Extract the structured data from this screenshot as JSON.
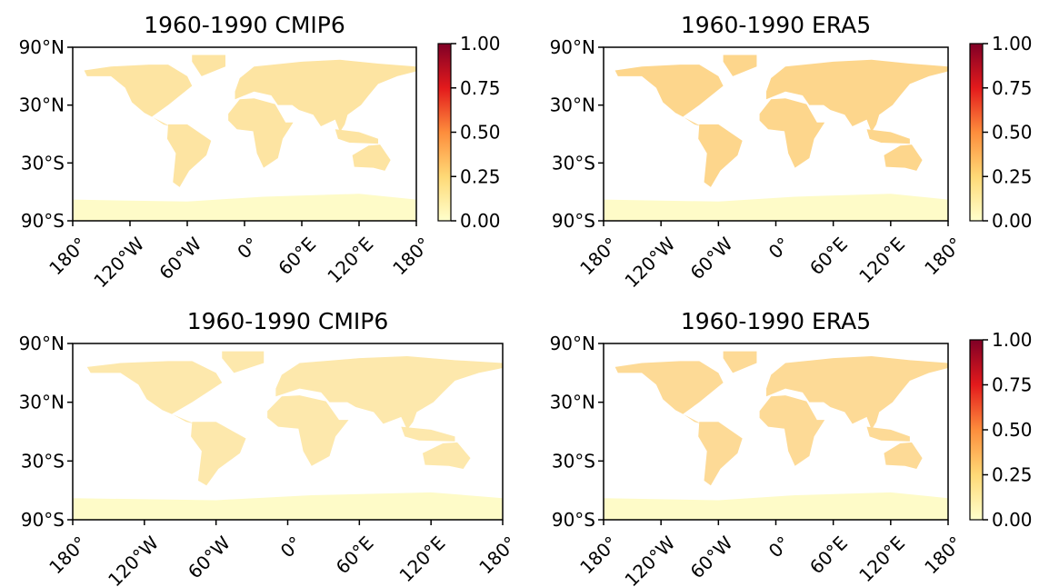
{
  "chart_data": [
    {
      "type": "map",
      "title": "1960-1990 CMIP6",
      "land_color": "#fde4a2",
      "xlim": [
        -180,
        180
      ],
      "xticks": [
        {
          "value": -180,
          "label": "180°"
        },
        {
          "value": -120,
          "label": "120°W"
        },
        {
          "value": -60,
          "label": "60°W"
        },
        {
          "value": 0,
          "label": "0°"
        },
        {
          "value": 60,
          "label": "60°E"
        },
        {
          "value": 120,
          "label": "120°E"
        },
        {
          "value": 180,
          "label": "180°"
        }
      ],
      "ylim": [
        -90,
        90
      ],
      "yticks": [
        {
          "value": 90,
          "label": "90°N"
        },
        {
          "value": 30,
          "label": "30°N"
        },
        {
          "value": -30,
          "label": "30°S"
        },
        {
          "value": -90,
          "label": "90°S"
        }
      ],
      "colorbar": {
        "lim": [
          0,
          1
        ],
        "ticks": [
          {
            "value": 0,
            "label": "0.00"
          },
          {
            "value": 0.25,
            "label": "0.25"
          },
          {
            "value": 0.5,
            "label": "0.50"
          },
          {
            "value": 0.75,
            "label": "0.75"
          },
          {
            "value": 1,
            "label": "1.00"
          }
        ],
        "colors": [
          "#ffffcc",
          "#fed976",
          "#fd8d3c",
          "#e31a1c",
          "#800026"
        ]
      }
    },
    {
      "type": "map",
      "title": "1960-1990 ERA5",
      "land_color": "#fdd68c",
      "xlim": [
        -180,
        180
      ],
      "xticks": [
        {
          "value": -180,
          "label": "180°"
        },
        {
          "value": -120,
          "label": "120°W"
        },
        {
          "value": -60,
          "label": "60°W"
        },
        {
          "value": 0,
          "label": "0°"
        },
        {
          "value": 60,
          "label": "60°E"
        },
        {
          "value": 120,
          "label": "120°E"
        },
        {
          "value": 180,
          "label": "180°"
        }
      ],
      "ylim": [
        -90,
        90
      ],
      "yticks": [
        {
          "value": 90,
          "label": "90°N"
        },
        {
          "value": 30,
          "label": "30°N"
        },
        {
          "value": -30,
          "label": "30°S"
        },
        {
          "value": -90,
          "label": "90°S"
        }
      ],
      "colorbar": {
        "lim": [
          0,
          1
        ],
        "ticks": [
          {
            "value": 0,
            "label": "0.00"
          },
          {
            "value": 0.25,
            "label": "0.25"
          },
          {
            "value": 0.5,
            "label": "0.50"
          },
          {
            "value": 0.75,
            "label": "0.75"
          },
          {
            "value": 1,
            "label": "1.00"
          }
        ],
        "colors": [
          "#ffffcc",
          "#fed976",
          "#fd8d3c",
          "#e31a1c",
          "#800026"
        ]
      }
    },
    {
      "type": "map",
      "title": "1960-1990 CMIP6",
      "land_color": "#fde8ac",
      "xlim": [
        -180,
        180
      ],
      "xticks": [
        {
          "value": -180,
          "label": "180°"
        },
        {
          "value": -120,
          "label": "120°W"
        },
        {
          "value": -60,
          "label": "60°W"
        },
        {
          "value": 0,
          "label": "0°"
        },
        {
          "value": 60,
          "label": "60°E"
        },
        {
          "value": 120,
          "label": "120°E"
        },
        {
          "value": 180,
          "label": "180°"
        }
      ],
      "ylim": [
        -90,
        90
      ],
      "yticks": [
        {
          "value": 90,
          "label": "90°N"
        },
        {
          "value": 30,
          "label": "30°N"
        },
        {
          "value": -30,
          "label": "30°S"
        },
        {
          "value": -90,
          "label": "90°S"
        }
      ]
    },
    {
      "type": "map",
      "title": "1960-1990 ERA5",
      "land_color": "#fdda96",
      "xlim": [
        -180,
        180
      ],
      "xticks": [
        {
          "value": -180,
          "label": "180°"
        },
        {
          "value": -120,
          "label": "120°W"
        },
        {
          "value": -60,
          "label": "60°W"
        },
        {
          "value": 0,
          "label": "0°"
        },
        {
          "value": 60,
          "label": "60°E"
        },
        {
          "value": 120,
          "label": "120°E"
        },
        {
          "value": 180,
          "label": "180°"
        }
      ],
      "ylim": [
        -90,
        90
      ],
      "yticks": [
        {
          "value": 90,
          "label": "90°N"
        },
        {
          "value": 30,
          "label": "30°N"
        },
        {
          "value": -30,
          "label": "30°S"
        },
        {
          "value": -90,
          "label": "90°S"
        }
      ],
      "colorbar": {
        "lim": [
          0,
          1
        ],
        "ticks": [
          {
            "value": 0,
            "label": "0.00"
          },
          {
            "value": 0.25,
            "label": "0.25"
          },
          {
            "value": 0.5,
            "label": "0.50"
          },
          {
            "value": 0.75,
            "label": "0.75"
          },
          {
            "value": 1,
            "label": "1.00"
          }
        ],
        "colors": [
          "#ffffcc",
          "#fed976",
          "#fd8d3c",
          "#e31a1c",
          "#800026"
        ]
      }
    }
  ]
}
